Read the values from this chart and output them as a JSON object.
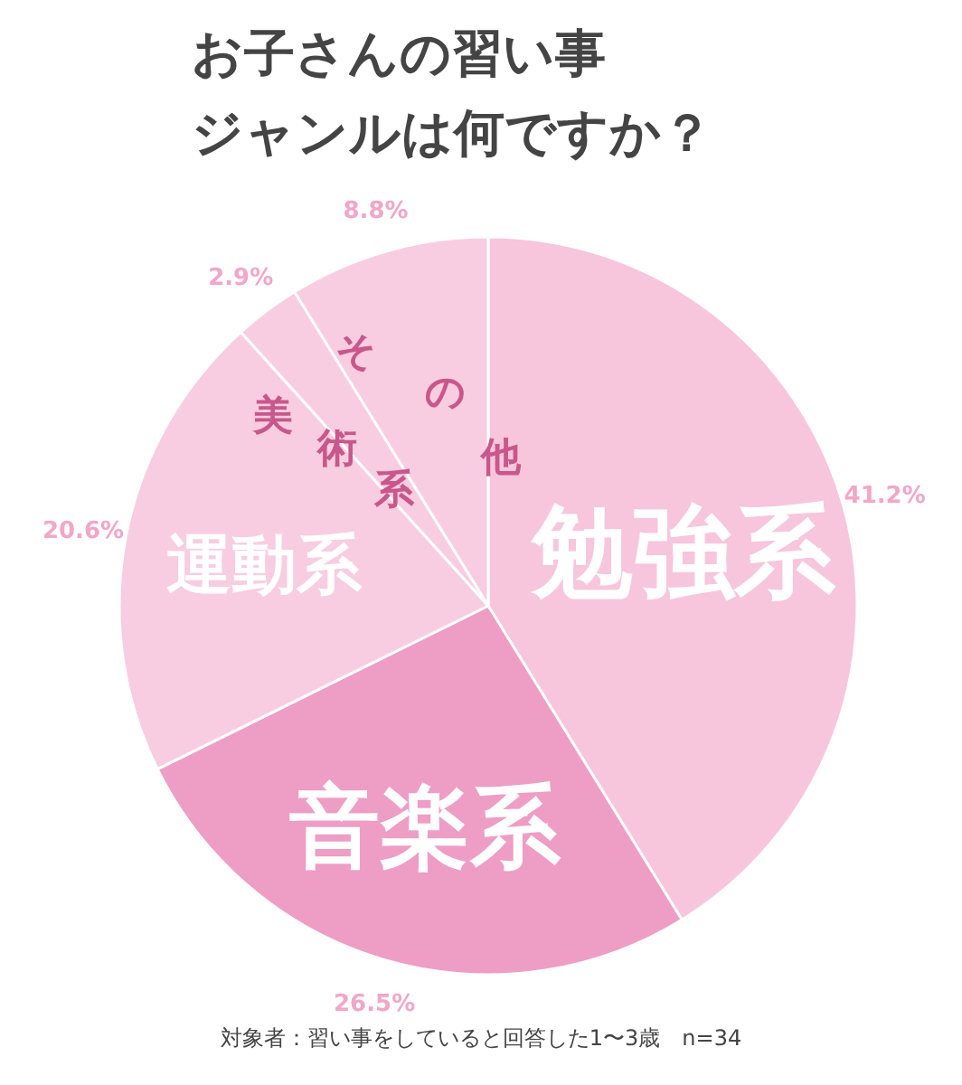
{
  "chart_data": {
    "type": "pie",
    "title": "お子さんの習い事ジャンルは何ですか？",
    "categories": [
      "勉強系",
      "音楽系",
      "運動系",
      "美術系",
      "その他"
    ],
    "values": [
      41.2,
      26.5,
      20.6,
      2.9,
      8.8
    ],
    "value_labels": [
      "41.2%",
      "26.5%",
      "20.6%",
      "2.9%",
      "8.8%"
    ],
    "colors": [
      "#f7c6dc",
      "#ee9dc4",
      "#f8cde1",
      "#f8cde1",
      "#f8cde1"
    ],
    "annotations": [
      "対象者：習い事をしていると回答した1〜3歳　n=34"
    ]
  }
}
